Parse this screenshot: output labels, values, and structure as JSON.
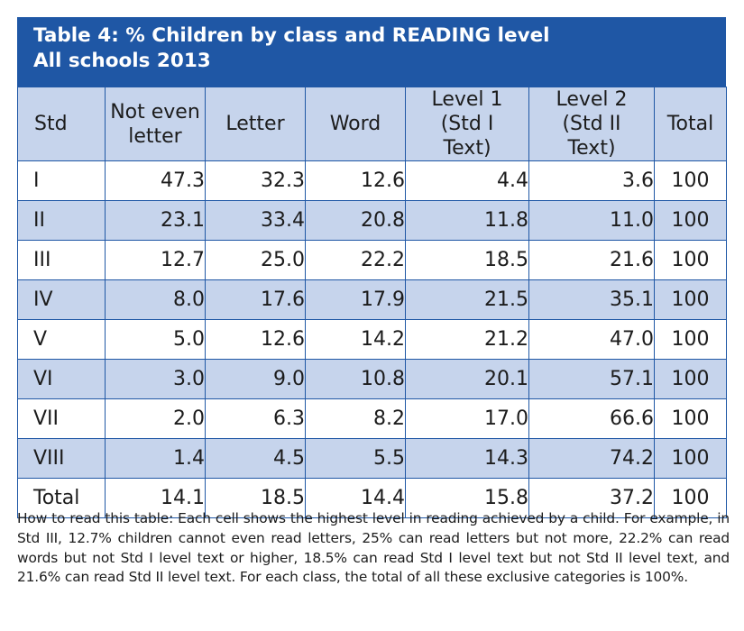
{
  "title": {
    "line1": "Table 4: % Children by class and READING level",
    "line2": "All schools 2013"
  },
  "columns": [
    "Std",
    "Not even letter",
    "Letter",
    "Word",
    "Level 1 (Std I Text)",
    "Level 2 (Std II Text)",
    "Total"
  ],
  "rows": [
    {
      "std": "I",
      "values": [
        "47.3",
        "32.3",
        "12.6",
        "4.4",
        "3.6",
        "100"
      ]
    },
    {
      "std": "II",
      "values": [
        "23.1",
        "33.4",
        "20.8",
        "11.8",
        "11.0",
        "100"
      ]
    },
    {
      "std": "III",
      "values": [
        "12.7",
        "25.0",
        "22.2",
        "18.5",
        "21.6",
        "100"
      ]
    },
    {
      "std": "IV",
      "values": [
        "8.0",
        "17.6",
        "17.9",
        "21.5",
        "35.1",
        "100"
      ]
    },
    {
      "std": "V",
      "values": [
        "5.0",
        "12.6",
        "14.2",
        "21.2",
        "47.0",
        "100"
      ]
    },
    {
      "std": "VI",
      "values": [
        "3.0",
        "9.0",
        "10.8",
        "20.1",
        "57.1",
        "100"
      ]
    },
    {
      "std": "VII",
      "values": [
        "2.0",
        "6.3",
        "8.2",
        "17.0",
        "66.6",
        "100"
      ]
    },
    {
      "std": "VIII",
      "values": [
        "1.4",
        "4.5",
        "5.5",
        "14.3",
        "74.2",
        "100"
      ]
    },
    {
      "std": "Total",
      "values": [
        "14.1",
        "18.5",
        "14.4",
        "15.8",
        "37.2",
        "100"
      ]
    }
  ],
  "note": "How to read this table: Each cell shows the highest level in reading achieved by a child. For example, in Std III, 12.7% children cannot even read letters, 25% can read letters but not more, 22.2% can read words but not Std I level text or higher, 18.5% can read Std I level text but not Std II level text, and 21.6% can read Std II level text. For each class, the total of all these exclusive categories is 100%.",
  "colors": {
    "title_background": "#1f57a5",
    "shaded_row": "#c6d4ec",
    "border": "#1f57a5"
  }
}
